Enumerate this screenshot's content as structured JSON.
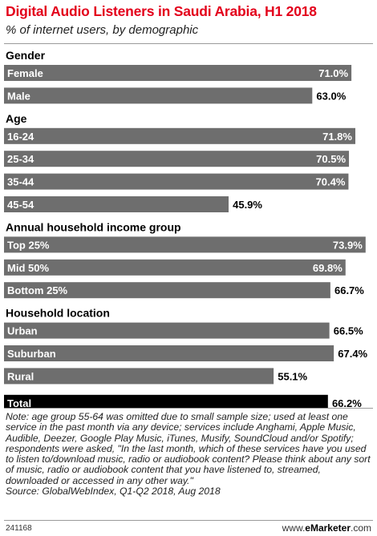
{
  "header": {
    "title": "Digital Audio Listeners in Saudi Arabia, H1 2018",
    "subtitle": "% of internet users, by demographic"
  },
  "chart_data": {
    "type": "bar",
    "orientation": "horizontal",
    "xlim": [
      0,
      80
    ],
    "grid": false,
    "value_suffix": "%",
    "colors": {
      "bar": "#6e6e6e",
      "total": "#000000",
      "label_inside": "#ffffff",
      "value": "#000000"
    },
    "groups": [
      {
        "heading": "Gender",
        "items": [
          {
            "label": "Female",
            "value": 71.0
          },
          {
            "label": "Male",
            "value": 63.0
          }
        ]
      },
      {
        "heading": "Age",
        "items": [
          {
            "label": "16-24",
            "value": 71.8
          },
          {
            "label": "25-34",
            "value": 70.5
          },
          {
            "label": "35-44",
            "value": 70.4
          },
          {
            "label": "45-54",
            "value": 45.9
          }
        ]
      },
      {
        "heading": "Annual household income group",
        "items": [
          {
            "label": "Top 25%",
            "value": 73.9
          },
          {
            "label": "Mid 50%",
            "value": 69.8
          },
          {
            "label": "Bottom 25%",
            "value": 66.7
          }
        ]
      },
      {
        "heading": "Household location",
        "items": [
          {
            "label": "Urban",
            "value": 66.5
          },
          {
            "label": "Suburban",
            "value": 67.4
          },
          {
            "label": "Rural",
            "value": 55.1
          }
        ]
      },
      {
        "heading": "",
        "items": [
          {
            "label": "Total",
            "value": 66.2,
            "highlight": true
          }
        ]
      }
    ]
  },
  "note": {
    "text": "Note: age group 55-64 was omitted due to small sample size; used at least one service in the past month via any device; services include Anghami, Apple Music, Audible, Deezer, Google Play Music, iTunes, Musify, SoundCloud and/or Spotify; respondents were asked, \"In the last month, which of these services have you used to listen to/download music, radio or audiobook content? Please think about any sort of music, radio or audiobook content that you have listened to, streamed, downloaded or accessed in any other way.\"",
    "source": "Source: GlobalWebIndex, Q1-Q2 2018, Aug 2018"
  },
  "footer": {
    "id": "241168",
    "brand_prefix": "www.",
    "brand_name": "eMarketer",
    "brand_suffix": ".com"
  }
}
